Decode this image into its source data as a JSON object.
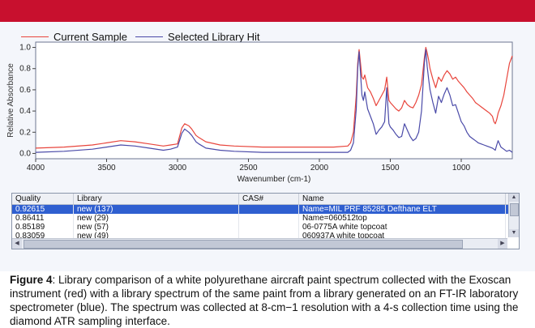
{
  "legend": [
    {
      "name": "Current Sample",
      "color": "#e8453c"
    },
    {
      "name": "Selected Library Hit",
      "color": "#4a4aa8"
    }
  ],
  "chart_data": {
    "type": "line",
    "title": "",
    "xlabel": "Wavenumber (cm-1)",
    "ylabel": "Relative Absorbance",
    "xlim": [
      4000,
      640
    ],
    "ylim": [
      -0.05,
      1.05
    ],
    "x_reversed": true,
    "xticks": [
      4000,
      3500,
      3000,
      2500,
      2000,
      1500,
      1000
    ],
    "yticks": [
      0.0,
      0.2,
      0.4,
      0.6,
      0.8,
      1.0
    ],
    "ytick_labels": [
      "0.0",
      "0.2",
      "0.4",
      "0.6",
      "0.8",
      "1.0"
    ],
    "grid": false,
    "legend_position": "top-left",
    "series": [
      {
        "name": "Current Sample",
        "color": "#e8453c",
        "x": [
          4000,
          3800,
          3600,
          3500,
          3400,
          3300,
          3200,
          3100,
          3050,
          3000,
          2970,
          2950,
          2920,
          2900,
          2870,
          2850,
          2800,
          2700,
          2600,
          2400,
          2200,
          2000,
          1900,
          1800,
          1780,
          1760,
          1740,
          1730,
          1720,
          1700,
          1690,
          1680,
          1660,
          1640,
          1620,
          1600,
          1580,
          1560,
          1540,
          1525,
          1510,
          1500,
          1480,
          1460,
          1440,
          1420,
          1400,
          1380,
          1360,
          1340,
          1320,
          1300,
          1280,
          1260,
          1250,
          1240,
          1230,
          1220,
          1200,
          1180,
          1160,
          1140,
          1120,
          1100,
          1080,
          1060,
          1040,
          1020,
          1000,
          980,
          960,
          940,
          920,
          900,
          880,
          860,
          840,
          820,
          800,
          780,
          770,
          760,
          750,
          740,
          720,
          700,
          680,
          660,
          640
        ],
        "y": [
          0.05,
          0.06,
          0.08,
          0.1,
          0.12,
          0.11,
          0.09,
          0.07,
          0.08,
          0.09,
          0.24,
          0.28,
          0.26,
          0.23,
          0.17,
          0.15,
          0.11,
          0.08,
          0.07,
          0.06,
          0.06,
          0.06,
          0.06,
          0.07,
          0.1,
          0.2,
          0.55,
          0.85,
          0.98,
          0.72,
          0.7,
          0.74,
          0.62,
          0.58,
          0.52,
          0.45,
          0.5,
          0.55,
          0.6,
          0.72,
          0.5,
          0.48,
          0.45,
          0.42,
          0.4,
          0.43,
          0.5,
          0.46,
          0.44,
          0.43,
          0.48,
          0.55,
          0.65,
          0.9,
          1.0,
          0.95,
          0.88,
          0.8,
          0.7,
          0.62,
          0.72,
          0.68,
          0.74,
          0.78,
          0.75,
          0.7,
          0.72,
          0.68,
          0.65,
          0.62,
          0.58,
          0.55,
          0.52,
          0.48,
          0.46,
          0.44,
          0.42,
          0.4,
          0.38,
          0.35,
          0.3,
          0.28,
          0.32,
          0.38,
          0.45,
          0.55,
          0.7,
          0.85,
          0.92
        ]
      },
      {
        "name": "Selected Library Hit",
        "color": "#4a4aa8",
        "x": [
          4000,
          3800,
          3600,
          3500,
          3400,
          3300,
          3200,
          3100,
          3050,
          3000,
          2970,
          2950,
          2920,
          2900,
          2870,
          2850,
          2800,
          2700,
          2600,
          2400,
          2200,
          2000,
          1900,
          1800,
          1780,
          1760,
          1740,
          1730,
          1720,
          1700,
          1690,
          1680,
          1660,
          1640,
          1620,
          1600,
          1580,
          1560,
          1540,
          1525,
          1510,
          1500,
          1480,
          1460,
          1440,
          1420,
          1400,
          1380,
          1360,
          1340,
          1320,
          1300,
          1280,
          1260,
          1250,
          1240,
          1230,
          1220,
          1200,
          1180,
          1160,
          1140,
          1120,
          1100,
          1080,
          1060,
          1040,
          1020,
          1000,
          980,
          960,
          940,
          920,
          900,
          880,
          860,
          840,
          820,
          800,
          780,
          770,
          760,
          750,
          740,
          720,
          700,
          680,
          660,
          640
        ],
        "y": [
          0.01,
          0.02,
          0.04,
          0.06,
          0.08,
          0.07,
          0.05,
          0.03,
          0.04,
          0.06,
          0.19,
          0.23,
          0.2,
          0.17,
          0.11,
          0.09,
          0.05,
          0.03,
          0.02,
          0.01,
          0.01,
          0.01,
          0.01,
          0.01,
          0.03,
          0.1,
          0.42,
          0.8,
          0.96,
          0.55,
          0.5,
          0.58,
          0.42,
          0.35,
          0.28,
          0.18,
          0.22,
          0.25,
          0.3,
          0.62,
          0.28,
          0.25,
          0.22,
          0.18,
          0.15,
          0.16,
          0.28,
          0.22,
          0.16,
          0.12,
          0.14,
          0.2,
          0.4,
          0.85,
          0.98,
          0.82,
          0.7,
          0.6,
          0.48,
          0.38,
          0.54,
          0.48,
          0.56,
          0.62,
          0.55,
          0.45,
          0.46,
          0.38,
          0.3,
          0.26,
          0.2,
          0.16,
          0.14,
          0.12,
          0.1,
          0.09,
          0.08,
          0.07,
          0.06,
          0.05,
          0.04,
          0.03,
          0.08,
          0.12,
          0.06,
          0.04,
          0.02,
          0.03,
          0.01
        ]
      }
    ]
  },
  "results_table": {
    "headers": [
      "Quality",
      "Library",
      "CAS#",
      "Name"
    ],
    "rows": [
      [
        "0.92615",
        "new (137)",
        "",
        "Name=MIL PRF 85285 Defthane ELT"
      ],
      [
        "0.86411",
        "new (29)",
        "",
        "Name=060512top"
      ],
      [
        "0.85189",
        "new (57)",
        "",
        "06-0775A white topcoat"
      ],
      [
        "0.83059",
        "new (49)",
        "",
        "060937A white topcoat"
      ]
    ],
    "selected_row": 0
  },
  "caption": {
    "label": "Figure 4",
    "text": ": Library comparison of a white polyurethane aircraft paint spectrum collected with the Exoscan instrument (red) with a library spectrum of the same paint from a library generated on an FT-IR laboratory spectrometer (blue). The spectrum was collected at 8-cm−1 resolution with a 4-s collection time using the diamond ATR sampling interface."
  }
}
